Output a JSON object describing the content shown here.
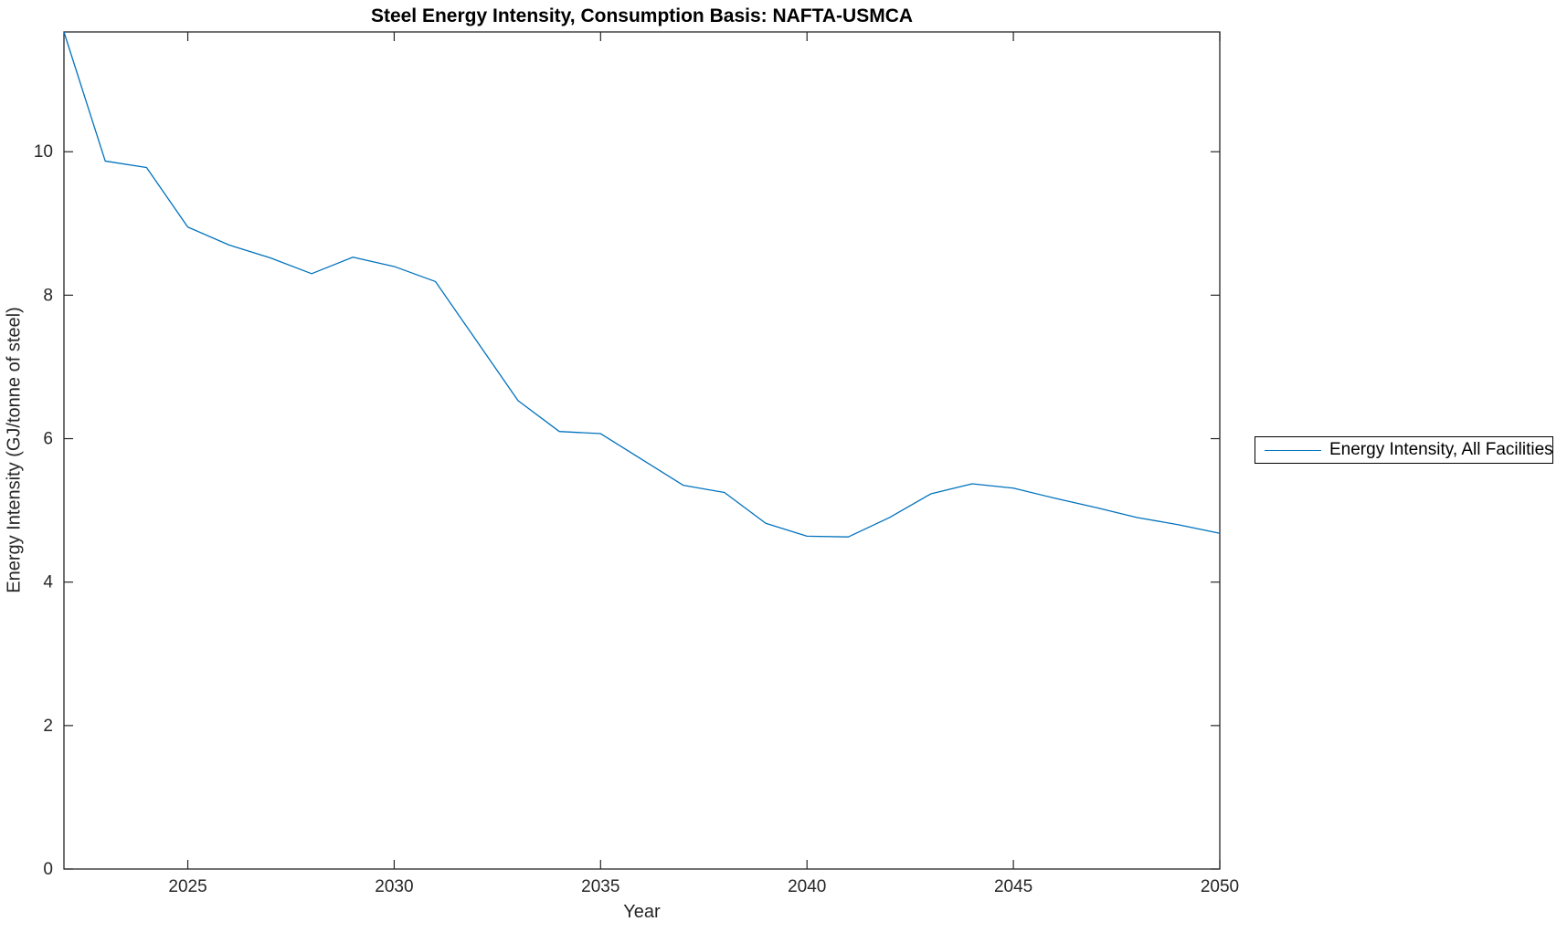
{
  "figure": {
    "background": "#ffffff",
    "axes_color": "#262626",
    "title_color": "#000000"
  },
  "chart_data": {
    "type": "line",
    "title": "Steel Energy Intensity, Consumption Basis: NAFTA-USMCA",
    "xlabel": "Year",
    "ylabel": "Energy Intensity (GJ/tonne of steel)",
    "xlim": [
      2022,
      2050
    ],
    "ylim": [
      0,
      11.67
    ],
    "xticks": [
      2025,
      2030,
      2035,
      2040,
      2045,
      2050
    ],
    "yticks": [
      0,
      2,
      4,
      6,
      8,
      10
    ],
    "grid": false,
    "box": true,
    "tick_direction": "in",
    "legend": {
      "position": "right-outside",
      "entries": [
        {
          "label": "Energy Intensity, All Facilities",
          "color": "#0072BD"
        }
      ]
    },
    "series": [
      {
        "name": "Energy Intensity, All Facilities",
        "color": "#0072BD",
        "x": [
          2022,
          2023,
          2024,
          2025,
          2026,
          2027,
          2028,
          2029,
          2030,
          2031,
          2032,
          2033,
          2034,
          2035,
          2036,
          2037,
          2038,
          2039,
          2040,
          2041,
          2042,
          2043,
          2044,
          2045,
          2046,
          2047,
          2048,
          2049,
          2050
        ],
        "values": [
          11.67,
          9.87,
          9.78,
          8.95,
          8.7,
          8.52,
          8.3,
          8.53,
          8.4,
          8.19,
          7.36,
          6.53,
          6.1,
          6.07,
          5.71,
          5.35,
          5.25,
          4.82,
          4.64,
          4.63,
          4.9,
          5.23,
          5.37,
          5.31,
          5.17,
          5.04,
          4.9,
          4.8,
          4.68
        ]
      }
    ]
  }
}
